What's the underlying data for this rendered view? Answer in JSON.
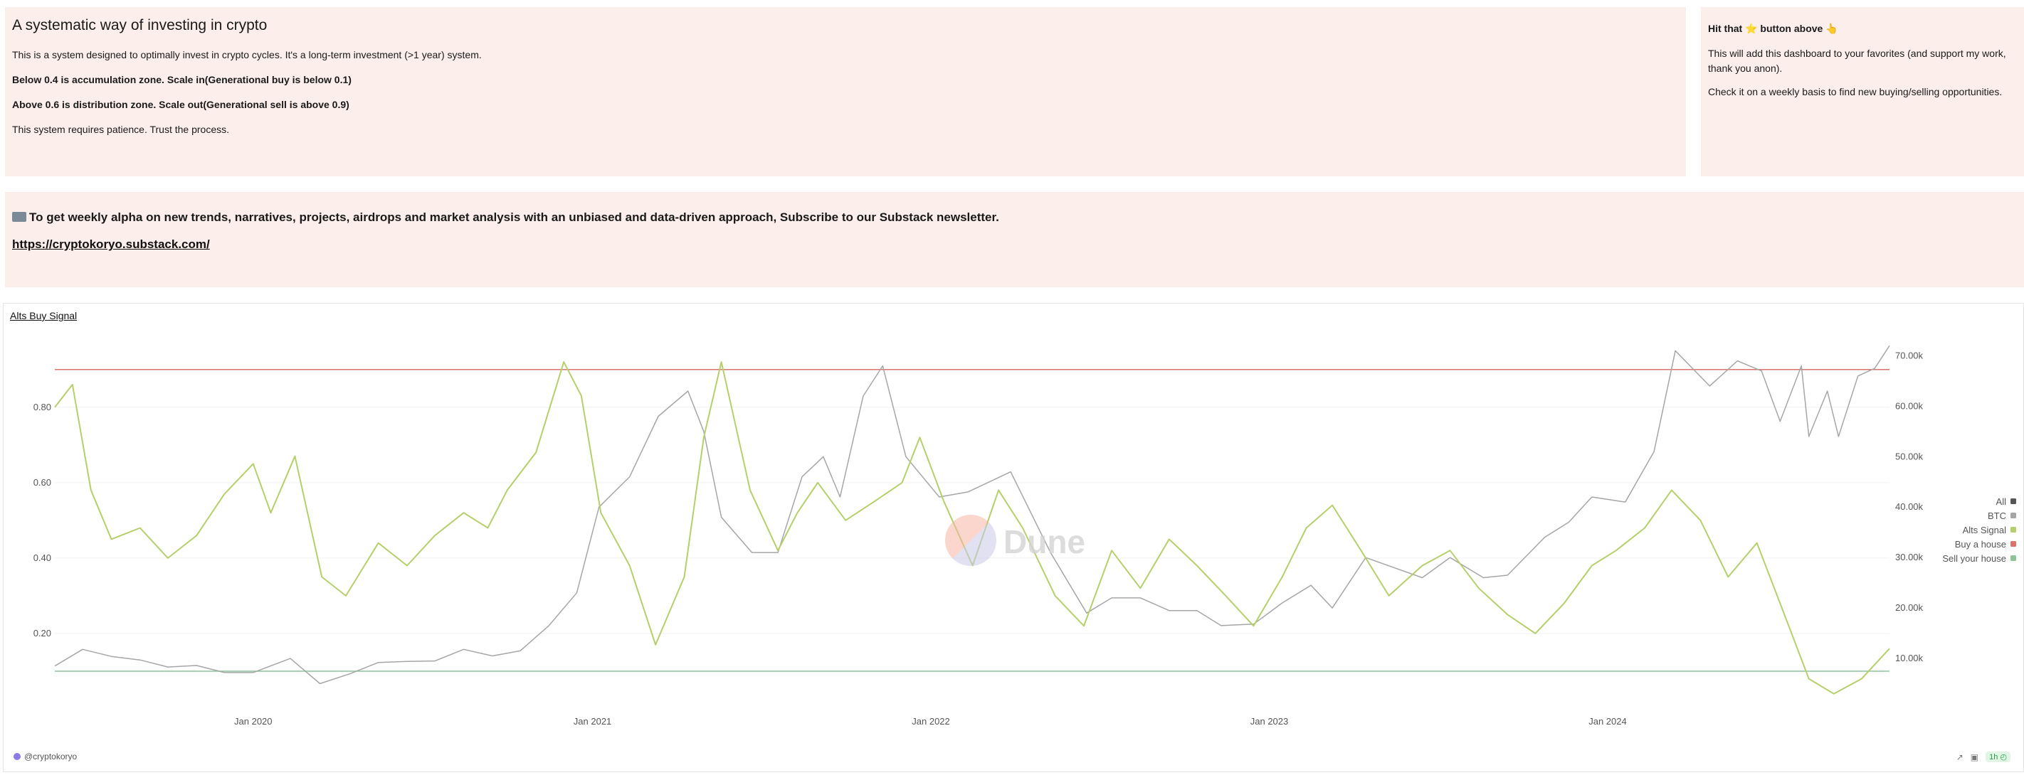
{
  "intro": {
    "title": "A systematic way of investing in crypto",
    "line1": "This is a system designed to optimally invest in crypto cycles. It's a long-term investment (>1 year) system.",
    "line2": "Below 0.4 is accumulation zone. Scale in(Generational buy is below 0.1)",
    "line3": "Above 0.6 is distribution zone. Scale out(Generational sell is above 0.9)",
    "line4": "This system requires patience. Trust the process."
  },
  "hint": {
    "title_pre": "Hit that ",
    "title_star": "⭐",
    "title_post": " button above 👆",
    "line1": "This will add this dashboard to your favorites (and support my work, thank you anon).",
    "line2": "Check it on a weekly basis to find new buying/selling opportunities."
  },
  "newsletter": {
    "text": "To get weekly alpha on new trends, narratives, projects, airdrops and market analysis with an unbiased and data-driven approach, Subscribe to our Substack newsletter.",
    "link": "https://cryptokoryo.substack.com/"
  },
  "footer": {
    "author": "@cryptokoryo",
    "badge": "1h"
  },
  "watermark": "Dune",
  "chart_data": {
    "type": "line",
    "title": "Alts Buy Signal",
    "x_range": [
      "2019-06-01",
      "2024-10-31"
    ],
    "x_ticks": [
      "Jan 2020",
      "Jan 2021",
      "Jan 2022",
      "Jan 2023",
      "Jan 2024"
    ],
    "x_tick_dates": [
      "2020-01-01",
      "2021-01-01",
      "2022-01-01",
      "2023-01-01",
      "2024-01-01"
    ],
    "y_left": {
      "range": [
        0,
        0.99
      ],
      "ticks": [
        "0.20",
        "0.40",
        "0.60",
        "0.80"
      ],
      "tick_values": [
        0.2,
        0.4,
        0.6,
        0.8
      ]
    },
    "y_right": {
      "range": [
        0,
        74000
      ],
      "ticks": [
        "10.00k",
        "20.00k",
        "30.00k",
        "40.00k",
        "50.00k",
        "60.00k",
        "70.00k"
      ],
      "tick_values": [
        10000,
        20000,
        30000,
        40000,
        50000,
        60000,
        70000
      ]
    },
    "legend_position": "right",
    "legend": [
      {
        "name": "All",
        "color": "#555555"
      },
      {
        "name": "BTC",
        "color": "#a6a6a6"
      },
      {
        "name": "Alts Signal",
        "color": "#b5cf6b"
      },
      {
        "name": "Buy a house",
        "color": "#d9736b"
      },
      {
        "name": "Sell your house",
        "color": "#8fc49b"
      }
    ],
    "series": [
      {
        "name": "Alts Signal",
        "axis": "left",
        "color": "#b5cf6b",
        "x": [
          "2019-06-01",
          "2019-06-20",
          "2019-07-10",
          "2019-08-01",
          "2019-09-01",
          "2019-10-01",
          "2019-11-01",
          "2019-12-01",
          "2020-01-01",
          "2020-01-20",
          "2020-02-15",
          "2020-03-15",
          "2020-04-10",
          "2020-05-15",
          "2020-06-15",
          "2020-07-15",
          "2020-08-15",
          "2020-09-10",
          "2020-10-01",
          "2020-11-01",
          "2020-12-01",
          "2020-12-20",
          "2021-01-10",
          "2021-02-10",
          "2021-03-10",
          "2021-04-10",
          "2021-05-01",
          "2021-05-20",
          "2021-06-20",
          "2021-07-20",
          "2021-08-10",
          "2021-09-01",
          "2021-10-01",
          "2021-11-01",
          "2021-12-01",
          "2021-12-20",
          "2022-01-15",
          "2022-02-15",
          "2022-03-15",
          "2022-04-10",
          "2022-05-15",
          "2022-06-15",
          "2022-07-15",
          "2022-08-15",
          "2022-09-15",
          "2022-10-15",
          "2022-11-15",
          "2022-12-15",
          "2023-01-15",
          "2023-02-10",
          "2023-03-10",
          "2023-04-10",
          "2023-05-10",
          "2023-06-15",
          "2023-07-15",
          "2023-08-15",
          "2023-09-15",
          "2023-10-15",
          "2023-11-15",
          "2023-12-15",
          "2024-01-10",
          "2024-02-10",
          "2024-03-10",
          "2024-04-10",
          "2024-05-10",
          "2024-06-10",
          "2024-07-05",
          "2024-08-05",
          "2024-09-01",
          "2024-10-01",
          "2024-10-31"
        ],
        "y": [
          0.8,
          0.86,
          0.58,
          0.45,
          0.48,
          0.4,
          0.46,
          0.57,
          0.65,
          0.52,
          0.67,
          0.35,
          0.3,
          0.44,
          0.38,
          0.46,
          0.52,
          0.48,
          0.58,
          0.68,
          0.92,
          0.83,
          0.52,
          0.38,
          0.17,
          0.35,
          0.72,
          0.92,
          0.58,
          0.42,
          0.52,
          0.6,
          0.5,
          0.55,
          0.6,
          0.72,
          0.55,
          0.38,
          0.58,
          0.48,
          0.3,
          0.22,
          0.42,
          0.32,
          0.45,
          0.38,
          0.3,
          0.22,
          0.35,
          0.48,
          0.54,
          0.42,
          0.3,
          0.38,
          0.42,
          0.32,
          0.25,
          0.2,
          0.28,
          0.38,
          0.42,
          0.48,
          0.58,
          0.5,
          0.35,
          0.44,
          0.28,
          0.08,
          0.04,
          0.08,
          0.16
        ]
      },
      {
        "name": "BTC",
        "axis": "right",
        "color": "#a6a6a6",
        "x": [
          "2019-06-01",
          "2019-07-01",
          "2019-08-01",
          "2019-09-01",
          "2019-10-01",
          "2019-11-01",
          "2019-12-01",
          "2020-01-01",
          "2020-02-10",
          "2020-03-13",
          "2020-04-15",
          "2020-05-15",
          "2020-06-15",
          "2020-07-15",
          "2020-08-15",
          "2020-09-15",
          "2020-10-15",
          "2020-11-15",
          "2020-12-15",
          "2021-01-08",
          "2021-02-10",
          "2021-03-13",
          "2021-04-14",
          "2021-05-01",
          "2021-05-20",
          "2021-06-22",
          "2021-07-20",
          "2021-08-15",
          "2021-09-07",
          "2021-09-25",
          "2021-10-20",
          "2021-11-10",
          "2021-12-05",
          "2022-01-10",
          "2022-02-10",
          "2022-03-28",
          "2022-05-10",
          "2022-06-18",
          "2022-07-15",
          "2022-08-15",
          "2022-09-15",
          "2022-10-15",
          "2022-11-10",
          "2022-12-15",
          "2023-01-15",
          "2023-02-15",
          "2023-03-10",
          "2023-04-15",
          "2023-06-15",
          "2023-07-15",
          "2023-08-20",
          "2023-09-15",
          "2023-10-25",
          "2023-11-20",
          "2023-12-15",
          "2024-01-20",
          "2024-02-20",
          "2024-03-14",
          "2024-04-20",
          "2024-05-20",
          "2024-06-15",
          "2024-07-05",
          "2024-07-28",
          "2024-08-05",
          "2024-08-25",
          "2024-09-06",
          "2024-09-27",
          "2024-10-15",
          "2024-10-31"
        ],
        "y": [
          8500,
          11800,
          10400,
          9700,
          8300,
          8600,
          7200,
          7200,
          10000,
          5000,
          7000,
          9200,
          9400,
          9500,
          11800,
          10500,
          11500,
          16500,
          23000,
          40000,
          46000,
          58000,
          63000,
          55000,
          38000,
          31000,
          31000,
          46000,
          50000,
          42000,
          62000,
          68000,
          50000,
          42000,
          43000,
          47000,
          31000,
          19000,
          22000,
          22000,
          19500,
          19500,
          16500,
          16800,
          21000,
          24500,
          20000,
          30000,
          26000,
          30000,
          26000,
          26500,
          34000,
          37000,
          42000,
          41000,
          51000,
          71000,
          64000,
          69000,
          67000,
          57000,
          68000,
          54000,
          63000,
          54000,
          66000,
          67500,
          72000
        ]
      },
      {
        "name": "Buy a house",
        "axis": "left",
        "color": "#d9736b",
        "x": [
          "2019-06-01",
          "2024-10-31"
        ],
        "y": [
          0.9,
          0.9
        ]
      },
      {
        "name": "Sell your house",
        "axis": "left",
        "color": "#8fc49b",
        "x": [
          "2019-06-01",
          "2024-10-31"
        ],
        "y": [
          0.1,
          0.1
        ]
      }
    ]
  }
}
